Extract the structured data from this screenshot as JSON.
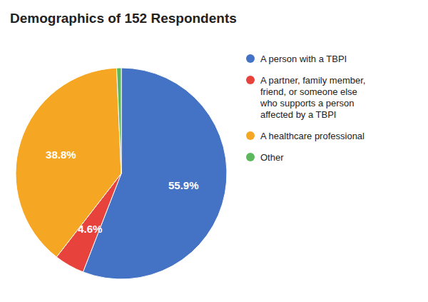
{
  "chart_data": {
    "type": "pie",
    "title": "Demographics of 152 Respondents",
    "categories": [
      "A person with a TBPI",
      "A partner, family member,\nfriend, or someone else\nwho supports a person\naffected by a TBPI",
      "A healthcare professional",
      "Other"
    ],
    "values": [
      55.9,
      4.6,
      38.8,
      0.7
    ],
    "value_labels": [
      "55.9%",
      "4.6%",
      "38.8%",
      null
    ],
    "colors": [
      "#4472C4",
      "#E8423C",
      "#F5A623",
      "#5DB85C"
    ],
    "data_labels": true,
    "legend": "right"
  }
}
